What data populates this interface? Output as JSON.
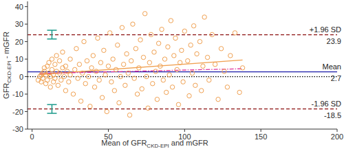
{
  "chart_data": {
    "type": "scatter",
    "xlabel": [
      "Mean of GFR",
      "CKD-EPI",
      " and mGFR"
    ],
    "ylabel": [
      "GFR",
      "CKD-EPI",
      " - mGFR"
    ],
    "xlim": [
      -3,
      200
    ],
    "ylim": [
      -30,
      43
    ],
    "xticks": [
      0,
      50,
      100,
      150,
      200
    ],
    "yticks": [
      -30,
      -20,
      -10,
      0,
      10,
      20,
      30,
      40
    ],
    "color": "#f0a050",
    "marker": "circle",
    "x": [
      4,
      5,
      6,
      6,
      7,
      7,
      8,
      8,
      9,
      9,
      10,
      10,
      11,
      11,
      12,
      12,
      13,
      13,
      14,
      14,
      15,
      15,
      16,
      16,
      17,
      18,
      18,
      19,
      20,
      20,
      21,
      22,
      22,
      23,
      24,
      25,
      25,
      27,
      28,
      29,
      30,
      31,
      32,
      33,
      34,
      35,
      36,
      37,
      38,
      39,
      40,
      41,
      42,
      43,
      44,
      45,
      46,
      47,
      48,
      49,
      50,
      51,
      52,
      53,
      54,
      55,
      56,
      57,
      58,
      59,
      60,
      61,
      62,
      63,
      64,
      65,
      66,
      67,
      68,
      69,
      70,
      71,
      72,
      73,
      74,
      75,
      76,
      77,
      78,
      79,
      80,
      81,
      82,
      83,
      84,
      85,
      86,
      87,
      88,
      89,
      90,
      91,
      92,
      93,
      94,
      95,
      96,
      97,
      98,
      99,
      100,
      102,
      103,
      104,
      105,
      106,
      107,
      108,
      110,
      111,
      112,
      113,
      115,
      116,
      118,
      120,
      122,
      124,
      126,
      128,
      130,
      133,
      136,
      138
    ],
    "values": [
      -2,
      0,
      1,
      -3,
      2,
      -1,
      3,
      5,
      -4,
      1,
      6,
      -2,
      2,
      8,
      0,
      -6,
      4,
      10,
      -3,
      1,
      7,
      -1,
      3,
      12,
      -5,
      2,
      9,
      -2,
      5,
      14,
      0,
      -8,
      6,
      3,
      -3,
      10,
      1,
      -10,
      4,
      16,
      -1,
      7,
      -14,
      2,
      20,
      -4,
      9,
      0,
      -17,
      5,
      12,
      -6,
      3,
      22,
      -2,
      8,
      -12,
      15,
      1,
      -20,
      6,
      25,
      -3,
      10,
      -8,
      4,
      18,
      -15,
      0,
      28,
      7,
      -5,
      13,
      2,
      -22,
      9,
      30,
      -1,
      16,
      -10,
      5,
      21,
      -7,
      11,
      36,
      0,
      -18,
      8,
      24,
      -4,
      14,
      3,
      -13,
      19,
      6,
      27,
      -2,
      10,
      -9,
      17,
      1,
      32,
      -6,
      12,
      22,
      4,
      -16,
      8,
      15,
      -3,
      26,
      9,
      -11,
      18,
      2,
      29,
      -5,
      13,
      20,
      -8,
      6,
      34,
      11,
      -2,
      24,
      7,
      -13,
      16,
      3,
      -6,
      12,
      25,
      -9,
      5
    ],
    "reference_lines": [
      {
        "value": 23.9,
        "name": "+1.96 SD",
        "color": "#8b1010",
        "line_style": "dashed",
        "ci": {
          "x": 13,
          "low": 21.5,
          "high": 26.5
        }
      },
      {
        "value": 2.7,
        "name": "Mean",
        "color": "#1a1aa8",
        "line_style": "solid"
      },
      {
        "value": 0,
        "color": "#000000",
        "line_style": "dotted"
      },
      {
        "value": -18.5,
        "name": "-1.96 SD",
        "color": "#8b1010",
        "line_style": "dashed",
        "ci": {
          "x": 13,
          "low": -21,
          "high": -16
        }
      }
    ],
    "ci_color": "#1a9a8a",
    "trend_lines": [
      {
        "x": [
          5,
          138
        ],
        "values": [
          1.2,
          9.5
        ],
        "color": "#f0a050",
        "line_style": "solid"
      },
      {
        "x": [
          5,
          138
        ],
        "values": [
          1.8,
          4.5
        ],
        "color": "#e0309a",
        "line_style": "dashdot"
      }
    ]
  }
}
